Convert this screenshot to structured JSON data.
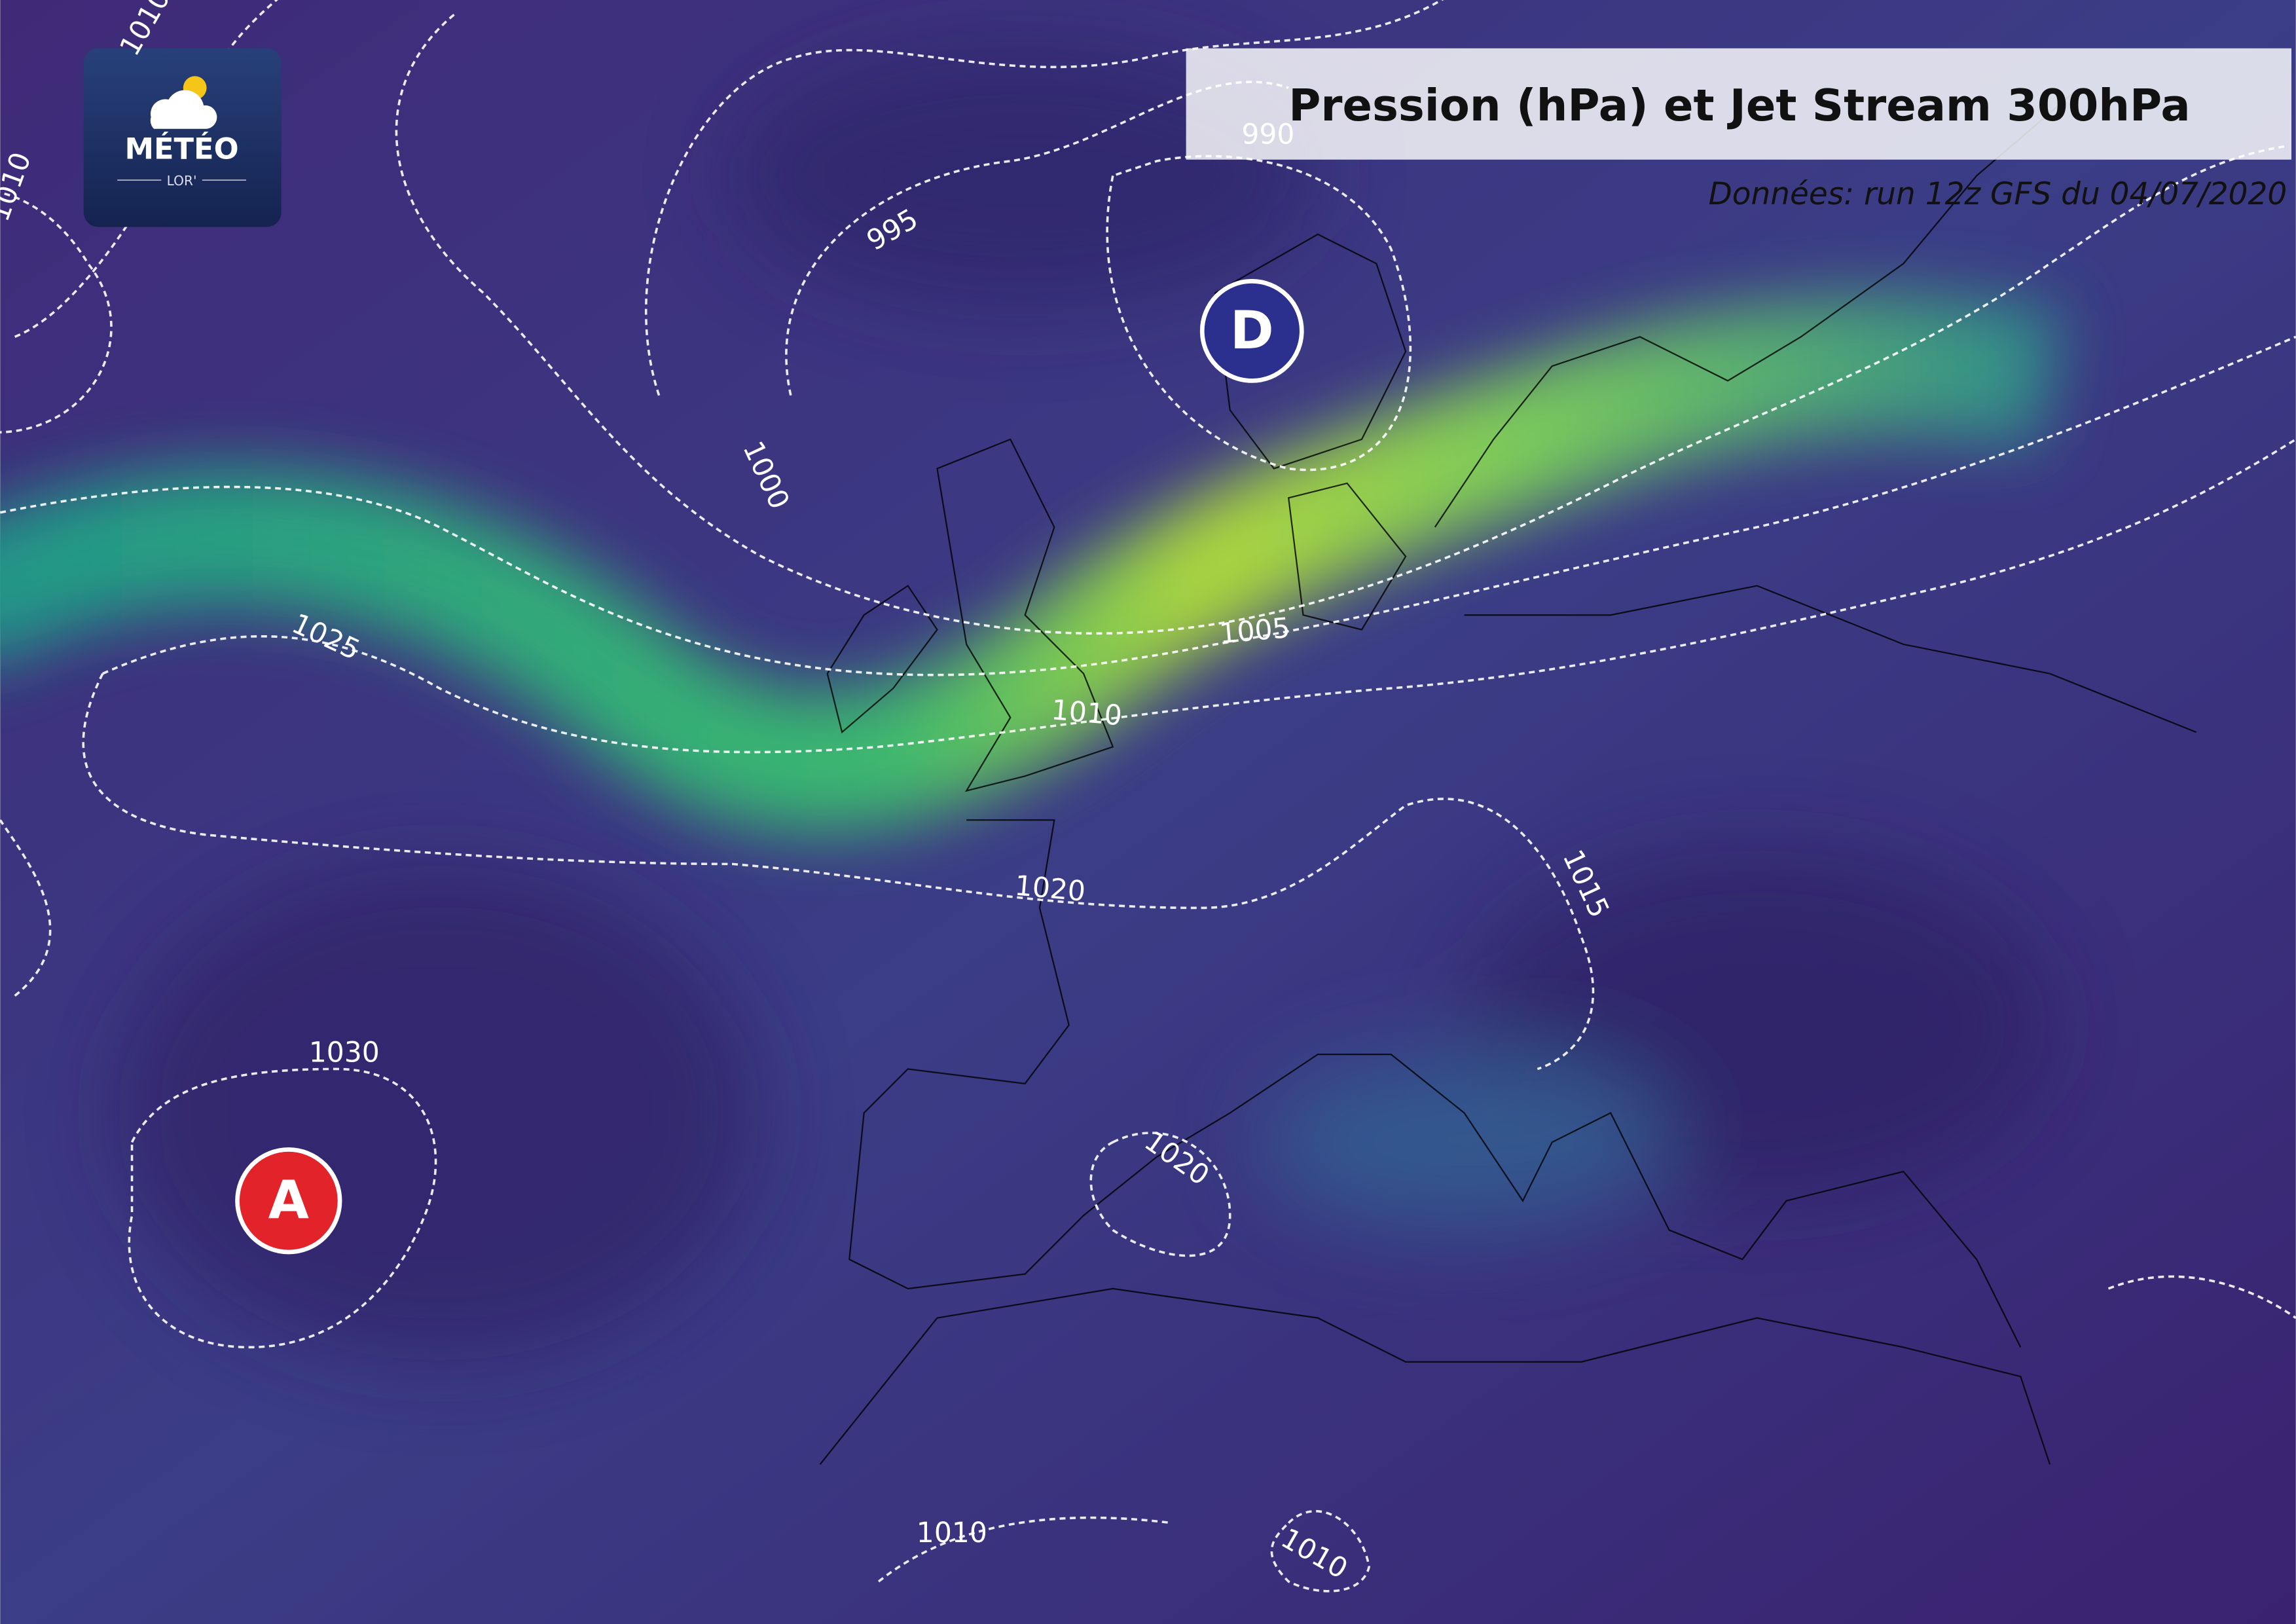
{
  "header": {
    "title": "Pression (hPa) et Jet Stream 300hPa",
    "subtitle": "Données: run 12z GFS du 04/07/2020"
  },
  "logo": {
    "name": "MÉTÉO",
    "sub": "LOR'"
  },
  "pressure_centers": [
    {
      "label": "D"
    },
    {
      "label": "A"
    }
  ],
  "isobar_labels": [
    1010,
    1010,
    995,
    990,
    1000,
    1025,
    1005,
    1010,
    1020,
    1015,
    1030,
    1020,
    1010,
    1010
  ]
}
